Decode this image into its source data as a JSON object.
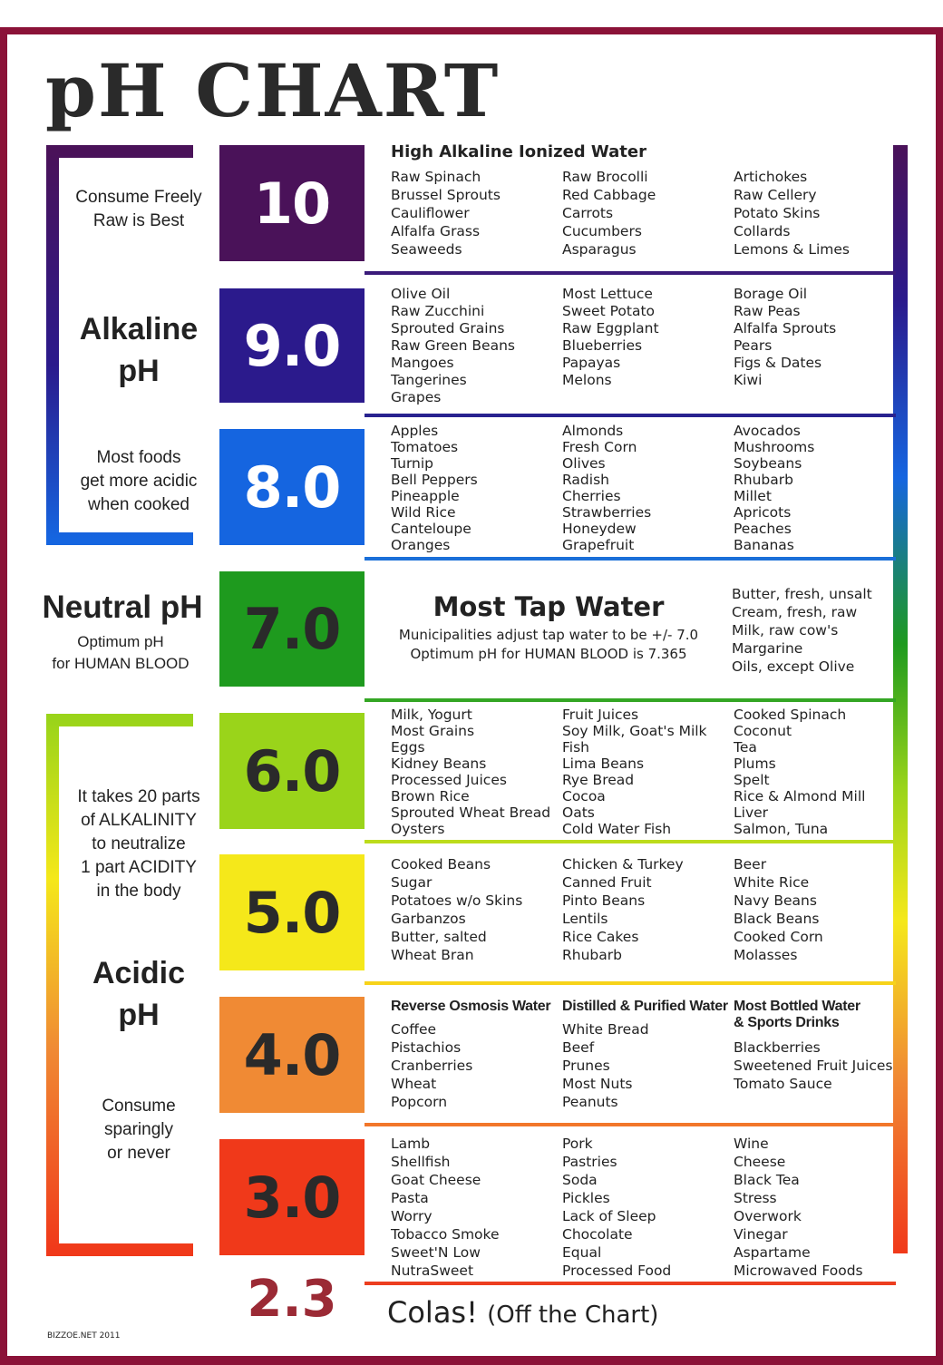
{
  "title": "pH CHART",
  "sidebar": {
    "consume_freely": [
      "Consume Freely",
      "Raw is Best"
    ],
    "alkaline": [
      "Alkaline",
      "pH"
    ],
    "cooked": [
      "Most  foods",
      "get more acidic",
      "when cooked"
    ],
    "neutral_title": "Neutral pH",
    "neutral_sub": [
      "Optimum pH",
      "for HUMAN BLOOD"
    ],
    "ratio": [
      "It takes 20 parts",
      "of ALKALINITY",
      "to neutralize",
      "1 part ACIDITY",
      "in the body"
    ],
    "acidic": [
      "Acidic",
      "pH"
    ],
    "sparingly": [
      "Consume",
      "sparingly",
      "or never"
    ]
  },
  "levels": [
    {
      "ph": "10",
      "color": "#4a1259",
      "text_color": "#ffffff",
      "header": "High Alkaline Ionized Water",
      "columns": [
        [
          "Raw Spinach",
          "Brussel Sprouts",
          "Cauliflower",
          "Alfalfa Grass",
          "Seaweeds"
        ],
        [
          "Raw Brocolli",
          "Red Cabbage",
          "Carrots",
          "Cucumbers",
          "Asparagus"
        ],
        [
          "Artichokes",
          "Raw Cellery",
          "Potato Skins",
          "Collards",
          "Lemons & Limes"
        ]
      ]
    },
    {
      "ph": "9.0",
      "color": "#2b1a8c",
      "text_color": "#ffffff",
      "columns": [
        [
          "Olive Oil",
          "Raw Zucchini",
          "Sprouted Grains",
          "Raw Green Beans",
          "Mangoes",
          "Tangerines",
          "Grapes"
        ],
        [
          "Most Lettuce",
          "Sweet Potato",
          "Raw Eggplant",
          "Blueberries",
          "Papayas",
          "Melons"
        ],
        [
          "Borage Oil",
          "Raw Peas",
          "Alfalfa Sprouts",
          "Pears",
          "Figs & Dates",
          "Kiwi"
        ]
      ]
    },
    {
      "ph": "8.0",
      "color": "#1565e0",
      "text_color": "#ffffff",
      "columns": [
        [
          "Apples",
          "Tomatoes",
          "Turnip",
          "Bell Peppers",
          "Pineapple",
          "Wild Rice",
          "Canteloupe",
          "Oranges"
        ],
        [
          "Almonds",
          "Fresh Corn",
          "Olives",
          "Radish",
          "Cherries",
          "Strawberries",
          "Honeydew",
          "Grapefruit"
        ],
        [
          "Avocados",
          "Mushrooms",
          "Soybeans",
          "Rhubarb",
          "Millet",
          "Apricots",
          "Peaches",
          "Bananas"
        ]
      ]
    },
    {
      "ph": "7.0",
      "color": "#1e9a1e",
      "text_color": "#2a2a2a",
      "tap_title": "Most Tap Water",
      "tap_sub": [
        "Municipalities adjust tap water to be +/- 7.0",
        "Optimum pH for HUMAN BLOOD is 7.365"
      ],
      "columns": [
        [
          "Butter, fresh, unsalt",
          "Cream, fresh, raw",
          "Milk, raw cow's",
          "Margarine",
          "Oils, except Olive"
        ]
      ]
    },
    {
      "ph": "6.0",
      "color": "#9ad41a",
      "text_color": "#2a2a2a",
      "columns": [
        [
          "Milk, Yogurt",
          "Most Grains",
          "Eggs",
          "Kidney Beans",
          "Processed Juices",
          "Brown Rice",
          "Sprouted Wheat Bread",
          "Oysters"
        ],
        [
          "Fruit Juices",
          "Soy Milk, Goat's Milk",
          "Fish",
          "Lima Beans",
          "Rye Bread",
          "Cocoa",
          "Oats",
          "Cold Water Fish"
        ],
        [
          "Cooked Spinach",
          "Coconut",
          "Tea",
          "Plums",
          "Spelt",
          "Rice & Almond Mill",
          "Liver",
          "Salmon, Tuna"
        ]
      ]
    },
    {
      "ph": "5.0",
      "color": "#f5e81a",
      "text_color": "#2a2a2a",
      "columns": [
        [
          "Cooked Beans",
          "Sugar",
          "Potatoes w/o Skins",
          "Garbanzos",
          "Butter, salted",
          "Wheat Bran"
        ],
        [
          "Chicken & Turkey",
          "Canned Fruit",
          "Pinto Beans",
          "Lentils",
          "Rice Cakes",
          "Rhubarb"
        ],
        [
          "Beer",
          "White Rice",
          "Navy Beans",
          "Black Beans",
          "Cooked Corn",
          "Molasses"
        ]
      ]
    },
    {
      "ph": "4.0",
      "color": "#f08a34",
      "text_color": "#2a2a2a",
      "column_headers": [
        "Reverse Osmosis Water",
        "Distilled & Purified Water",
        "Most Bottled Water\n& Sports Drinks"
      ],
      "columns": [
        [
          "Coffee",
          "Pistachios",
          "Cranberries",
          "Wheat",
          "Popcorn"
        ],
        [
          "White Bread",
          "Beef",
          "Prunes",
          "Most Nuts",
          "Peanuts"
        ],
        [
          "Blackberries",
          "Sweetened Fruit Juices",
          "Tomato Sauce"
        ]
      ]
    },
    {
      "ph": "3.0",
      "color": "#f0391a",
      "text_color": "#2a2a2a",
      "columns": [
        [
          "Lamb",
          "Shellfish",
          "Goat Cheese",
          "Pasta",
          "Worry",
          "Tobacco Smoke",
          "Sweet'N Low",
          "NutraSweet"
        ],
        [
          "Pork",
          "Pastries",
          "Soda",
          "Pickles",
          "Lack of Sleep",
          "Chocolate",
          "Equal",
          "Processed Food"
        ],
        [
          "Wine",
          "Cheese",
          "Black Tea",
          "Stress",
          "Overwork",
          "Vinegar",
          "Aspartame",
          "Microwaved Foods"
        ]
      ]
    }
  ],
  "colas": {
    "ph": "2.3",
    "label": "Colas!",
    "note": "(Off the Chart)"
  },
  "credit": "BIZZOE.NET  2011"
}
